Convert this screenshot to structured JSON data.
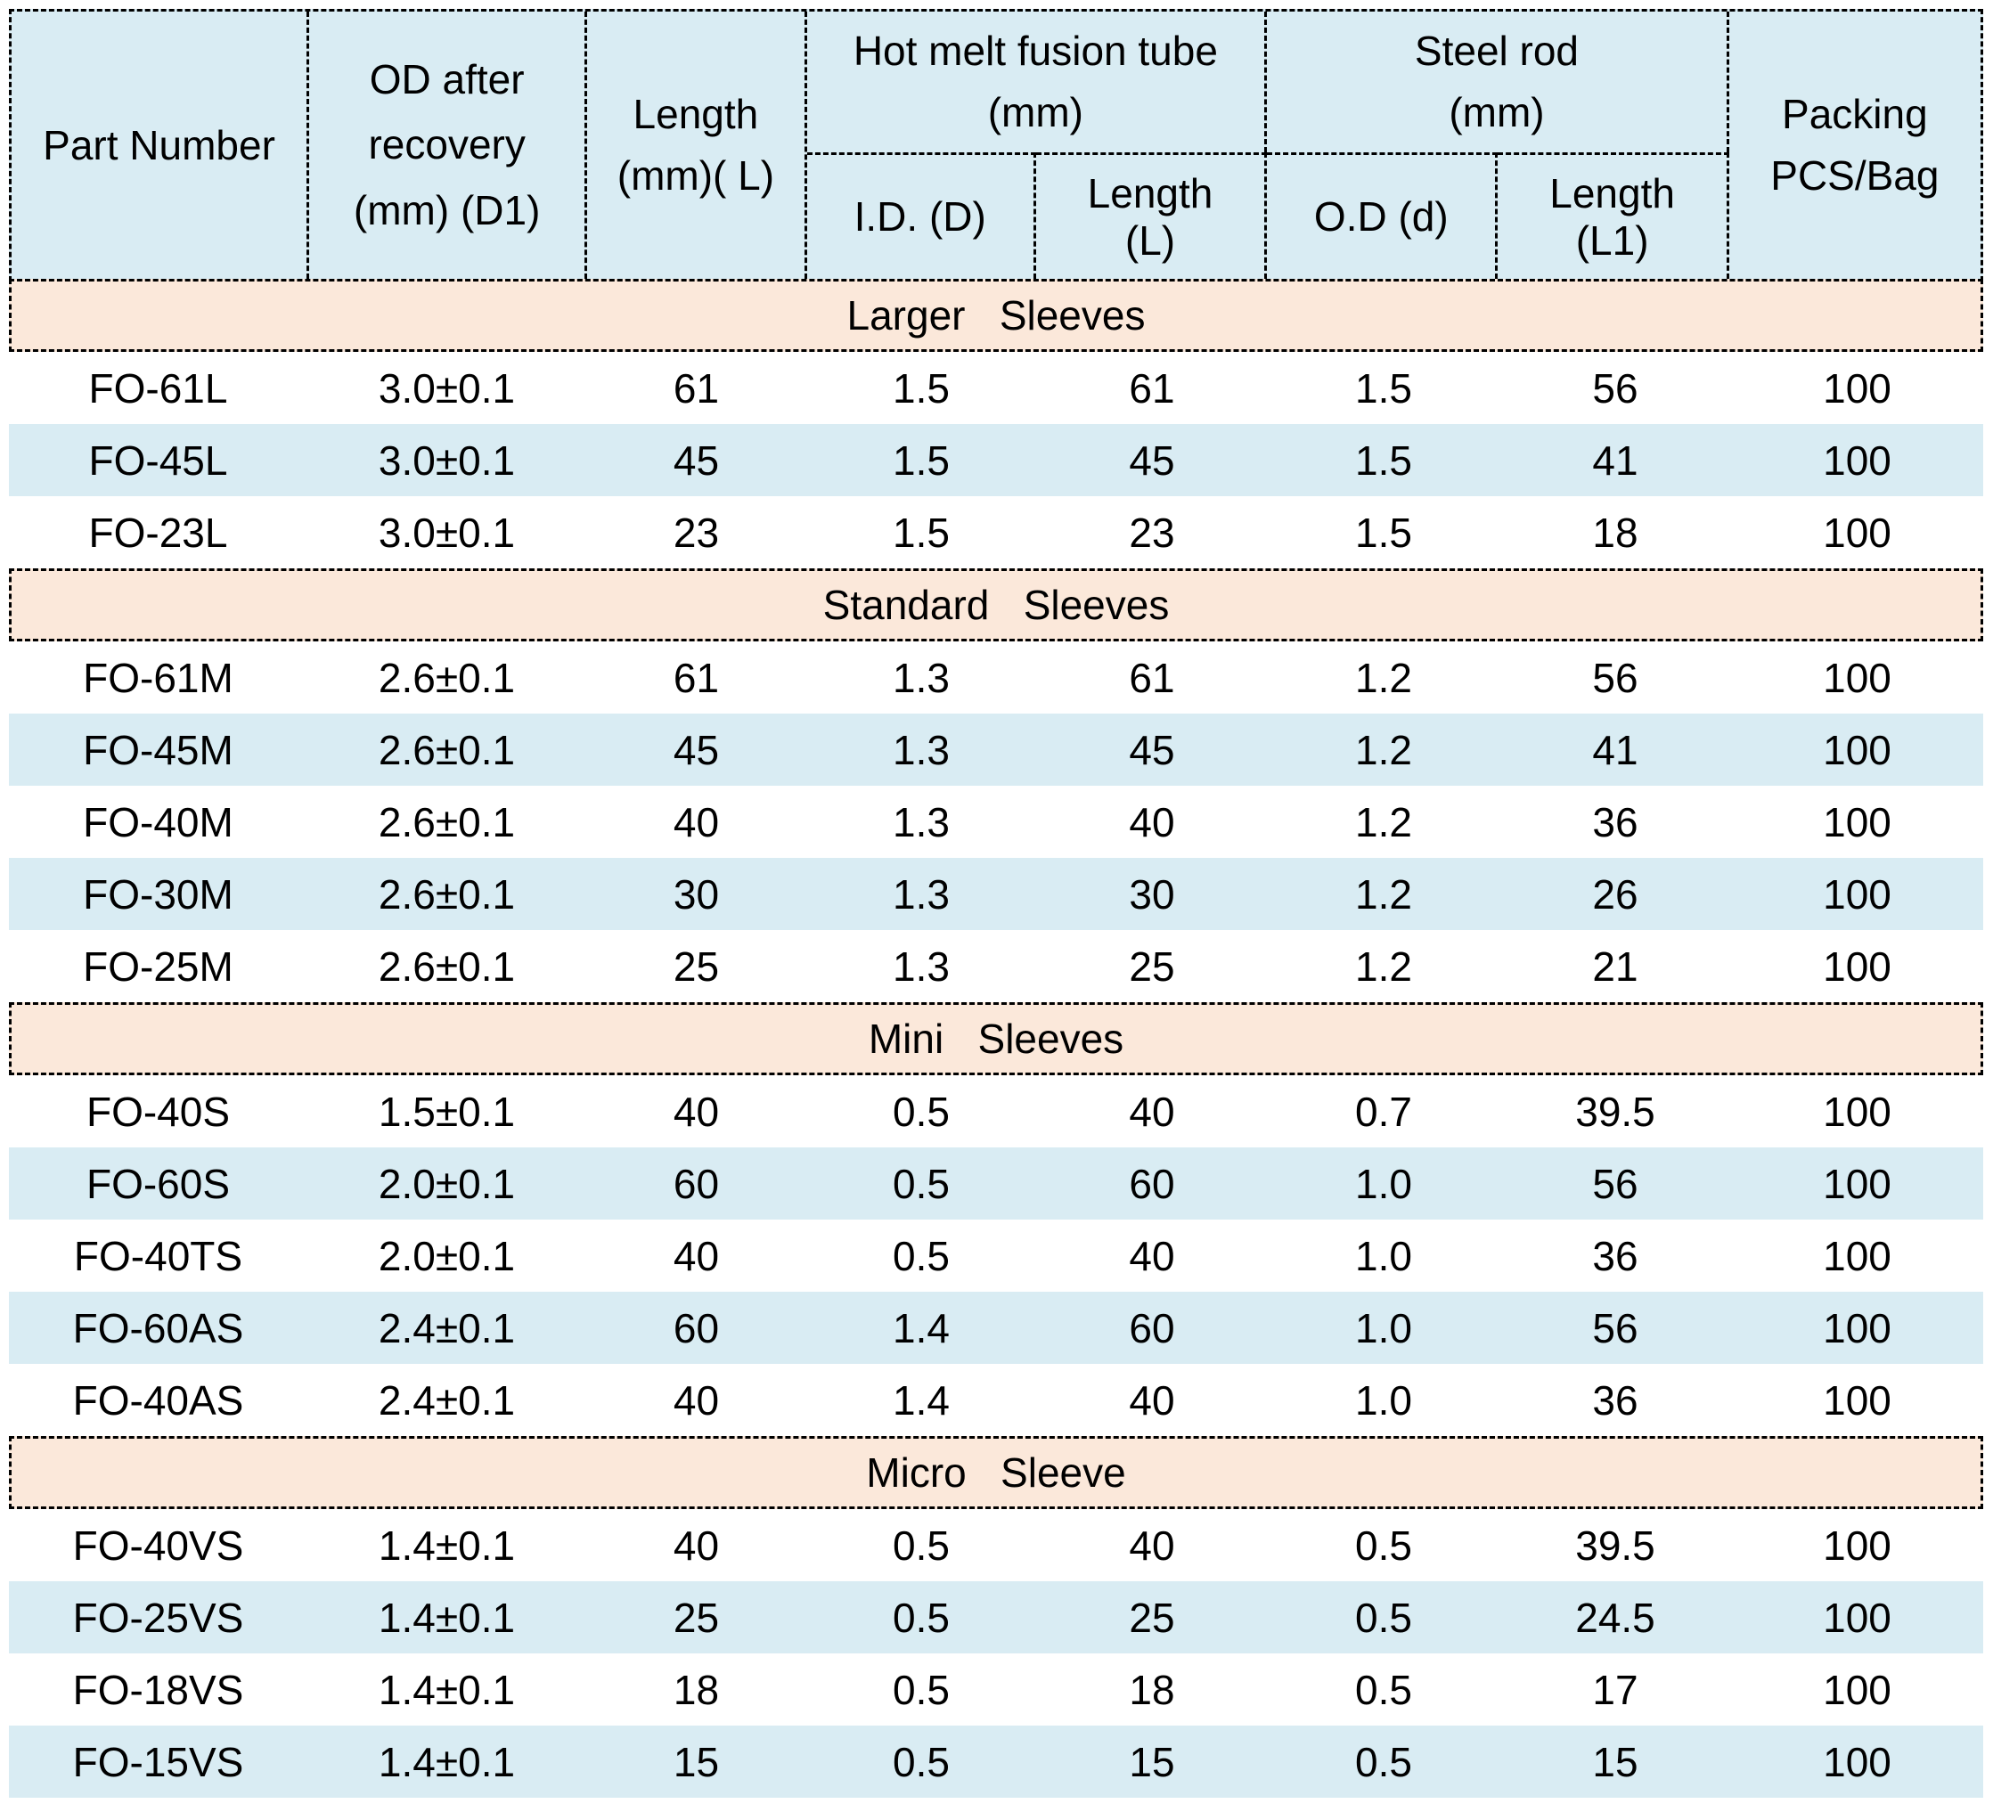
{
  "table": {
    "header": {
      "part_number": "Part Number",
      "od_recovery": "OD after\nrecovery\n(mm) (D1)",
      "length": "Length\n(mm)( L)",
      "hot_melt_group": "Hot melt fusion tube\n(mm)",
      "hot_melt_id": "I.D. (D)",
      "hot_melt_length": "Length\n(L)",
      "steel_rod_group": "Steel rod\n(mm)",
      "steel_rod_od": "O.D (d)",
      "steel_rod_length": "Length\n(L1)",
      "packing": "Packing\nPCS/Bag"
    },
    "sections": [
      {
        "title": "Larger   Sleeves",
        "rows": [
          [
            "FO-61L",
            "3.0±0.1",
            "61",
            "1.5",
            "61",
            "1.5",
            "56",
            "100"
          ],
          [
            "FO-45L",
            "3.0±0.1",
            "45",
            "1.5",
            "45",
            "1.5",
            "41",
            "100"
          ],
          [
            "FO-23L",
            "3.0±0.1",
            "23",
            "1.5",
            "23",
            "1.5",
            "18",
            "100"
          ]
        ]
      },
      {
        "title": "Standard   Sleeves",
        "rows": [
          [
            "FO-61M",
            "2.6±0.1",
            "61",
            "1.3",
            "61",
            "1.2",
            "56",
            "100"
          ],
          [
            "FO-45M",
            "2.6±0.1",
            "45",
            "1.3",
            "45",
            "1.2",
            "41",
            "100"
          ],
          [
            "FO-40M",
            "2.6±0.1",
            "40",
            "1.3",
            "40",
            "1.2",
            "36",
            "100"
          ],
          [
            "FO-30M",
            "2.6±0.1",
            "30",
            "1.3",
            "30",
            "1.2",
            "26",
            "100"
          ],
          [
            "FO-25M",
            "2.6±0.1",
            "25",
            "1.3",
            "25",
            "1.2",
            "21",
            "100"
          ]
        ]
      },
      {
        "title": "Mini   Sleeves",
        "rows": [
          [
            "FO-40S",
            "1.5±0.1",
            "40",
            "0.5",
            "40",
            "0.7",
            "39.5",
            "100"
          ],
          [
            "FO-60S",
            "2.0±0.1",
            "60",
            "0.5",
            "60",
            "1.0",
            "56",
            "100"
          ],
          [
            "FO-40TS",
            "2.0±0.1",
            "40",
            "0.5",
            "40",
            "1.0",
            "36",
            "100"
          ],
          [
            "FO-60AS",
            "2.4±0.1",
            "60",
            "1.4",
            "60",
            "1.0",
            "56",
            "100"
          ],
          [
            "FO-40AS",
            "2.4±0.1",
            "40",
            "1.4",
            "40",
            "1.0",
            "36",
            "100"
          ]
        ]
      },
      {
        "title": "Micro   Sleeve",
        "rows": [
          [
            "FO-40VS",
            "1.4±0.1",
            "40",
            "0.5",
            "40",
            "0.5",
            "39.5",
            "100"
          ],
          [
            "FO-25VS",
            "1.4±0.1",
            "25",
            "0.5",
            "25",
            "0.5",
            "24.5",
            "100"
          ],
          [
            "FO-18VS",
            "1.4±0.1",
            "18",
            "0.5",
            "18",
            "0.5",
            "17",
            "100"
          ],
          [
            "FO-15VS",
            "1.4±0.1",
            "15",
            "0.5",
            "15",
            "0.5",
            "15",
            "100"
          ]
        ]
      }
    ]
  },
  "colors": {
    "header_fill": "#d9ecf3",
    "stripe_fill": "#d9ecf3",
    "section_fill": "#fbe8da",
    "border": "#000000",
    "text": "#000000"
  }
}
